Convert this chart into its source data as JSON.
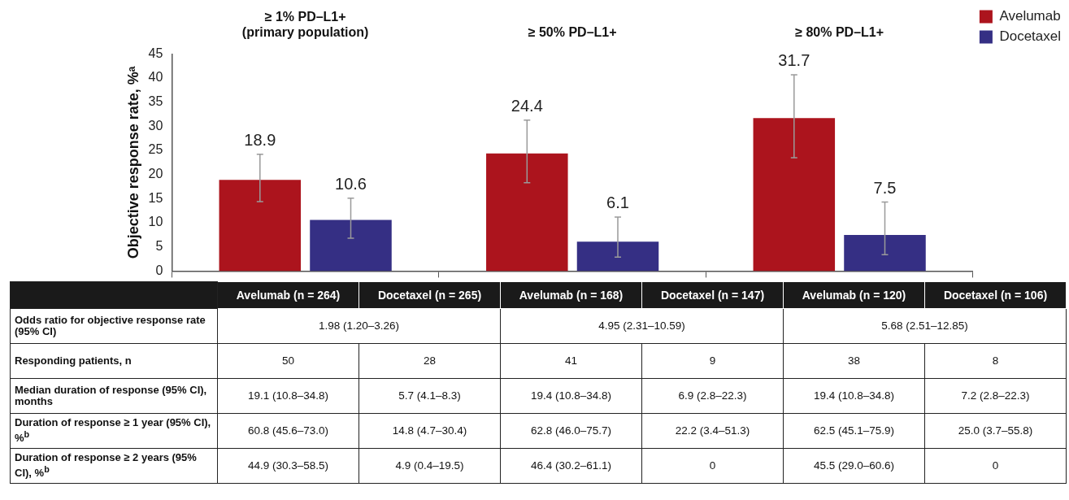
{
  "chart_data": [
    {
      "type": "bar",
      "ylabel": "Objective response rate, %ᵃ",
      "categories": [
        "≥ 1% PD–L1+\n(primary population)",
        "≥ 50% PD–L1+",
        "≥ 80% PD–L1+"
      ],
      "series": [
        {
          "name": "Avelumab",
          "color": "#ac141d",
          "values": [
            18.9,
            24.4,
            31.7
          ],
          "errors": [
            [
              14.4,
              24.2
            ],
            [
              18.3,
              31.3
            ],
            [
              23.5,
              40.7
            ]
          ]
        },
        {
          "name": "Docetaxel",
          "color": "#352f84",
          "values": [
            10.6,
            6.1,
            7.5
          ],
          "errors": [
            [
              6.8,
              15.1
            ],
            [
              2.9,
              11.2
            ],
            [
              3.4,
              14.3
            ]
          ]
        }
      ],
      "ylim": [
        0,
        45
      ],
      "yticks": [
        0,
        5,
        10,
        15,
        20,
        25,
        30,
        35,
        40,
        45
      ],
      "grid": false,
      "legend": "top right",
      "data_labels": true
    },
    {
      "type": "other",
      "annotations": [
        "Avelumab (n = 264)",
        "Docetaxel (n = 265)",
        "Avelumab (n = 168)",
        "Docetaxel (n = 147)",
        "Avelumab (n = 120)",
        "Docetaxel (n = 106)",
        "Odds ratio for objective response rate (95% CI)",
        "1.98 (1.20–3.26)",
        "4.95 (2.31–10.59)",
        "5.68 (2.51–12.85)",
        "Responding patients, n",
        "50",
        "28",
        "41",
        "9",
        "38",
        "8",
        "Median duration of response (95% CI), months",
        "19.1 (10.8–34.8)",
        "5.7 (4.1–8.3)",
        "19.4 (10.8–34.8)",
        "6.9 (2.8–22.3)",
        "19.4 (10.8–34.8)",
        "7.2 (2.8–22.3)",
        "Duration of response ≥ 1 year (95% CI), %$^{b}$",
        "60.8 (45.6–73.0)",
        "14.8 (4.7–30.4)",
        "62.8 (46.0–75.7)",
        "22.2 (3.4–51.3)",
        "62.5 (45.1–75.9)",
        "25.0 (3.7–55.8)",
        "Duration of response ≥ 2 years (95% CI), %$^{b}$",
        "44.9 (30.3–58.5)",
        "4.9 (0.4–19.5)",
        "46.4 (30.2–61.1)",
        "0",
        "45.5 (29.0–60.6)",
        "0"
      ]
    }
  ]
}
